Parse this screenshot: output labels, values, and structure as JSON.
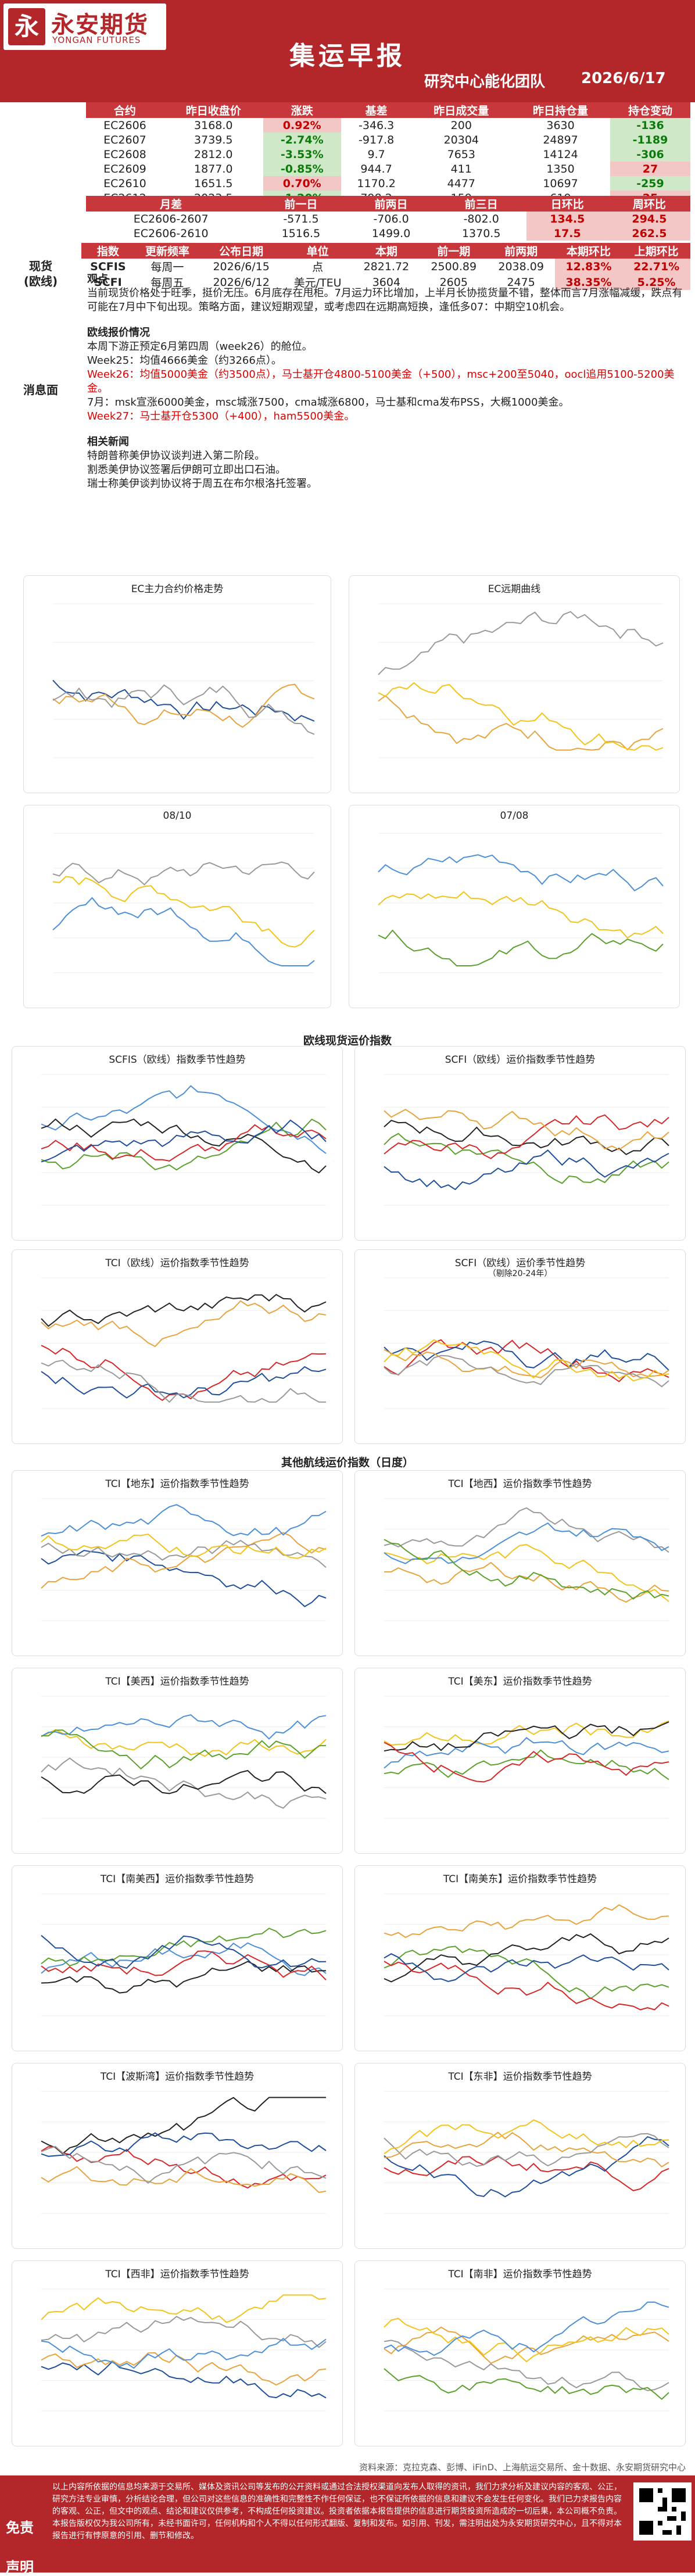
{
  "header": {
    "logo_cn": "永安期货",
    "logo_en": "YONGAN FUTURES",
    "title": "集运早报",
    "team": "研究中心能化团队",
    "date": "2026/6/17"
  },
  "futures": {
    "headers": [
      "合约",
      "昨日收盘价",
      "涨跌",
      "基差",
      "昨日成交量",
      "昨日持仓量",
      "持仓变动"
    ],
    "rows": [
      [
        "EC2606",
        "3168.0",
        "0.92%",
        "-346.3",
        "200",
        "3630",
        "-136"
      ],
      [
        "EC2607",
        "3739.5",
        "-2.74%",
        "-917.8",
        "20304",
        "24897",
        "-1189"
      ],
      [
        "EC2608",
        "2812.0",
        "-3.53%",
        "9.7",
        "7653",
        "14124",
        "-306"
      ],
      [
        "EC2609",
        "1877.0",
        "-0.85%",
        "944.7",
        "411",
        "1350",
        "27"
      ],
      [
        "EC2610",
        "1651.5",
        "0.70%",
        "1170.2",
        "4477",
        "10697",
        "-259"
      ],
      [
        "EC2612",
        "2023.5",
        "-1.20%",
        "798.2",
        "159",
        "619",
        "25"
      ]
    ]
  },
  "spread": {
    "headers": [
      "月差",
      "前一日",
      "前两日",
      "前三日",
      "日环比",
      "周环比"
    ],
    "rows": [
      [
        "EC2606-2607",
        "-571.5",
        "-706.0",
        "-802.0",
        "134.5",
        "294.5"
      ],
      [
        "EC2606-2610",
        "1516.5",
        "1499.0",
        "1370.5",
        "17.5",
        "262.5"
      ]
    ]
  },
  "spot": {
    "side1": "现货",
    "side2": "(欧线)",
    "headers": [
      "指数",
      "更新频率",
      "公布日期",
      "单位",
      "本期",
      "前一期",
      "前两期",
      "本期环比",
      "上期环比"
    ],
    "rows": [
      [
        "SCFIS",
        "每周一",
        "2026/6/15",
        "点",
        "2821.72",
        "2500.89",
        "2038.09",
        "12.83%",
        "22.71%"
      ],
      [
        "SCFI",
        "每周五",
        "2026/6/12",
        "美元/TEU",
        "3604",
        "2605",
        "2475",
        "38.35%",
        "5.25%"
      ]
    ]
  },
  "news": {
    "side": "消息面",
    "view_h": "观点",
    "view": "当前现货价格处于旺季，挺价无压。6月底存在甩柜。7月运力环比增加，上半月长协揽货量不错，整体而言7月涨幅减缓，跌点有可能在7月中下旬出现。策略方面，建议短期观望，或考虑四在远期高短换，逢低多07：中期空10机会。",
    "quote_h": "欧线报价情况",
    "q1": "本周下游正预定6月第四周（week26）的舱位。",
    "q2": "Week25：均值4666美金（约3266点）。",
    "q3": "Week26：均值5000美金（约3500点），马士基开仓4800-5100美金（+500），msc+200至5040，oocl追用5100-5200美金。",
    "q4": "7月：msk宣涨6000美金，msc城涨7500，cma城涨6800，马士基和cma发布PSS，大概1000美金。",
    "q5": "Week27：马士基开仓5300（+400），ham5500美金。",
    "rel_h": "相关新闻",
    "r1": "特朗普称美伊协议谈判进入第二阶段。",
    "r2": "割悉美伊协议签署后伊朗可立即出口石油。",
    "r3": "瑞士称美伊谈判协议将于周五在布尔根洛托签署。"
  },
  "charts": {
    "c1": "EC主力合约价格走势",
    "c2": "EC远期曲线",
    "c3": "08/10",
    "c4": "07/08",
    "sec1": "欧线现货运价指数",
    "c5": "SCFIS（欧线）指数季节性趋势",
    "c6": "SCFI（欧线）运价指数季节性趋势",
    "c7": "TCI（欧线）运价指数季节性趋势",
    "c8": "SCFI（欧线）运价季节性趋势",
    "c8b": "（剔除20-24年）",
    "sec2": "其他航线运价指数（日度）",
    "c9": "TCI【地东】运价指数季节性趋势",
    "c10": "TCI【地西】运价指数季节性趋势",
    "c11": "TCI【美西】运价指数季节性趋势",
    "c12": "TCI【美东】运价指数季节性趋势",
    "c13": "TCI【南美西】运价指数季节性趋势",
    "c14": "TCI【南美东】运价指数季节性趋势",
    "c15": "TCI【波斯湾】运价指数季节性趋势",
    "c16": "TCI【东非】运价指数季节性趋势",
    "c17": "TCI【西非】运价指数季节性趋势",
    "c18": "TCI【南非】运价指数季节性趋势"
  },
  "source": "资料来源：克拉克森、彭博、iFinD、上海航运交易所、金十数据、永安期货研究中心",
  "footer": {
    "l1": "免责",
    "l2": "声明",
    "text": "以上内容所依据的信息均来源于交易所、媒体及资讯公司等发布的公开资料或通过合法授权渠道向发布人取得的资讯，我们力求分析及建议内容的客观、公正，研究方法专业审慎，分析结论合理，但公司对这些信息的准确性和完整性不作任何保证，也不保证所依据的信息和建议不会发生任何变化。我们已力求报告内容的客观、公正，但文中的观点、结论和建议仅供参考，不构成任何投资建议。投资者依据本报告提供的信息进行期货投资所造成的一切后果，本公司概不负责。本报告版权仅为我公司所有，未经书面许可，任何机构和个人不得以任何形式翻版、复制和发布。如引用、刊发，需注明出处为永安期货研究中心，且不得对本报告进行有悖原意的引用、删节和修改。"
  }
}
